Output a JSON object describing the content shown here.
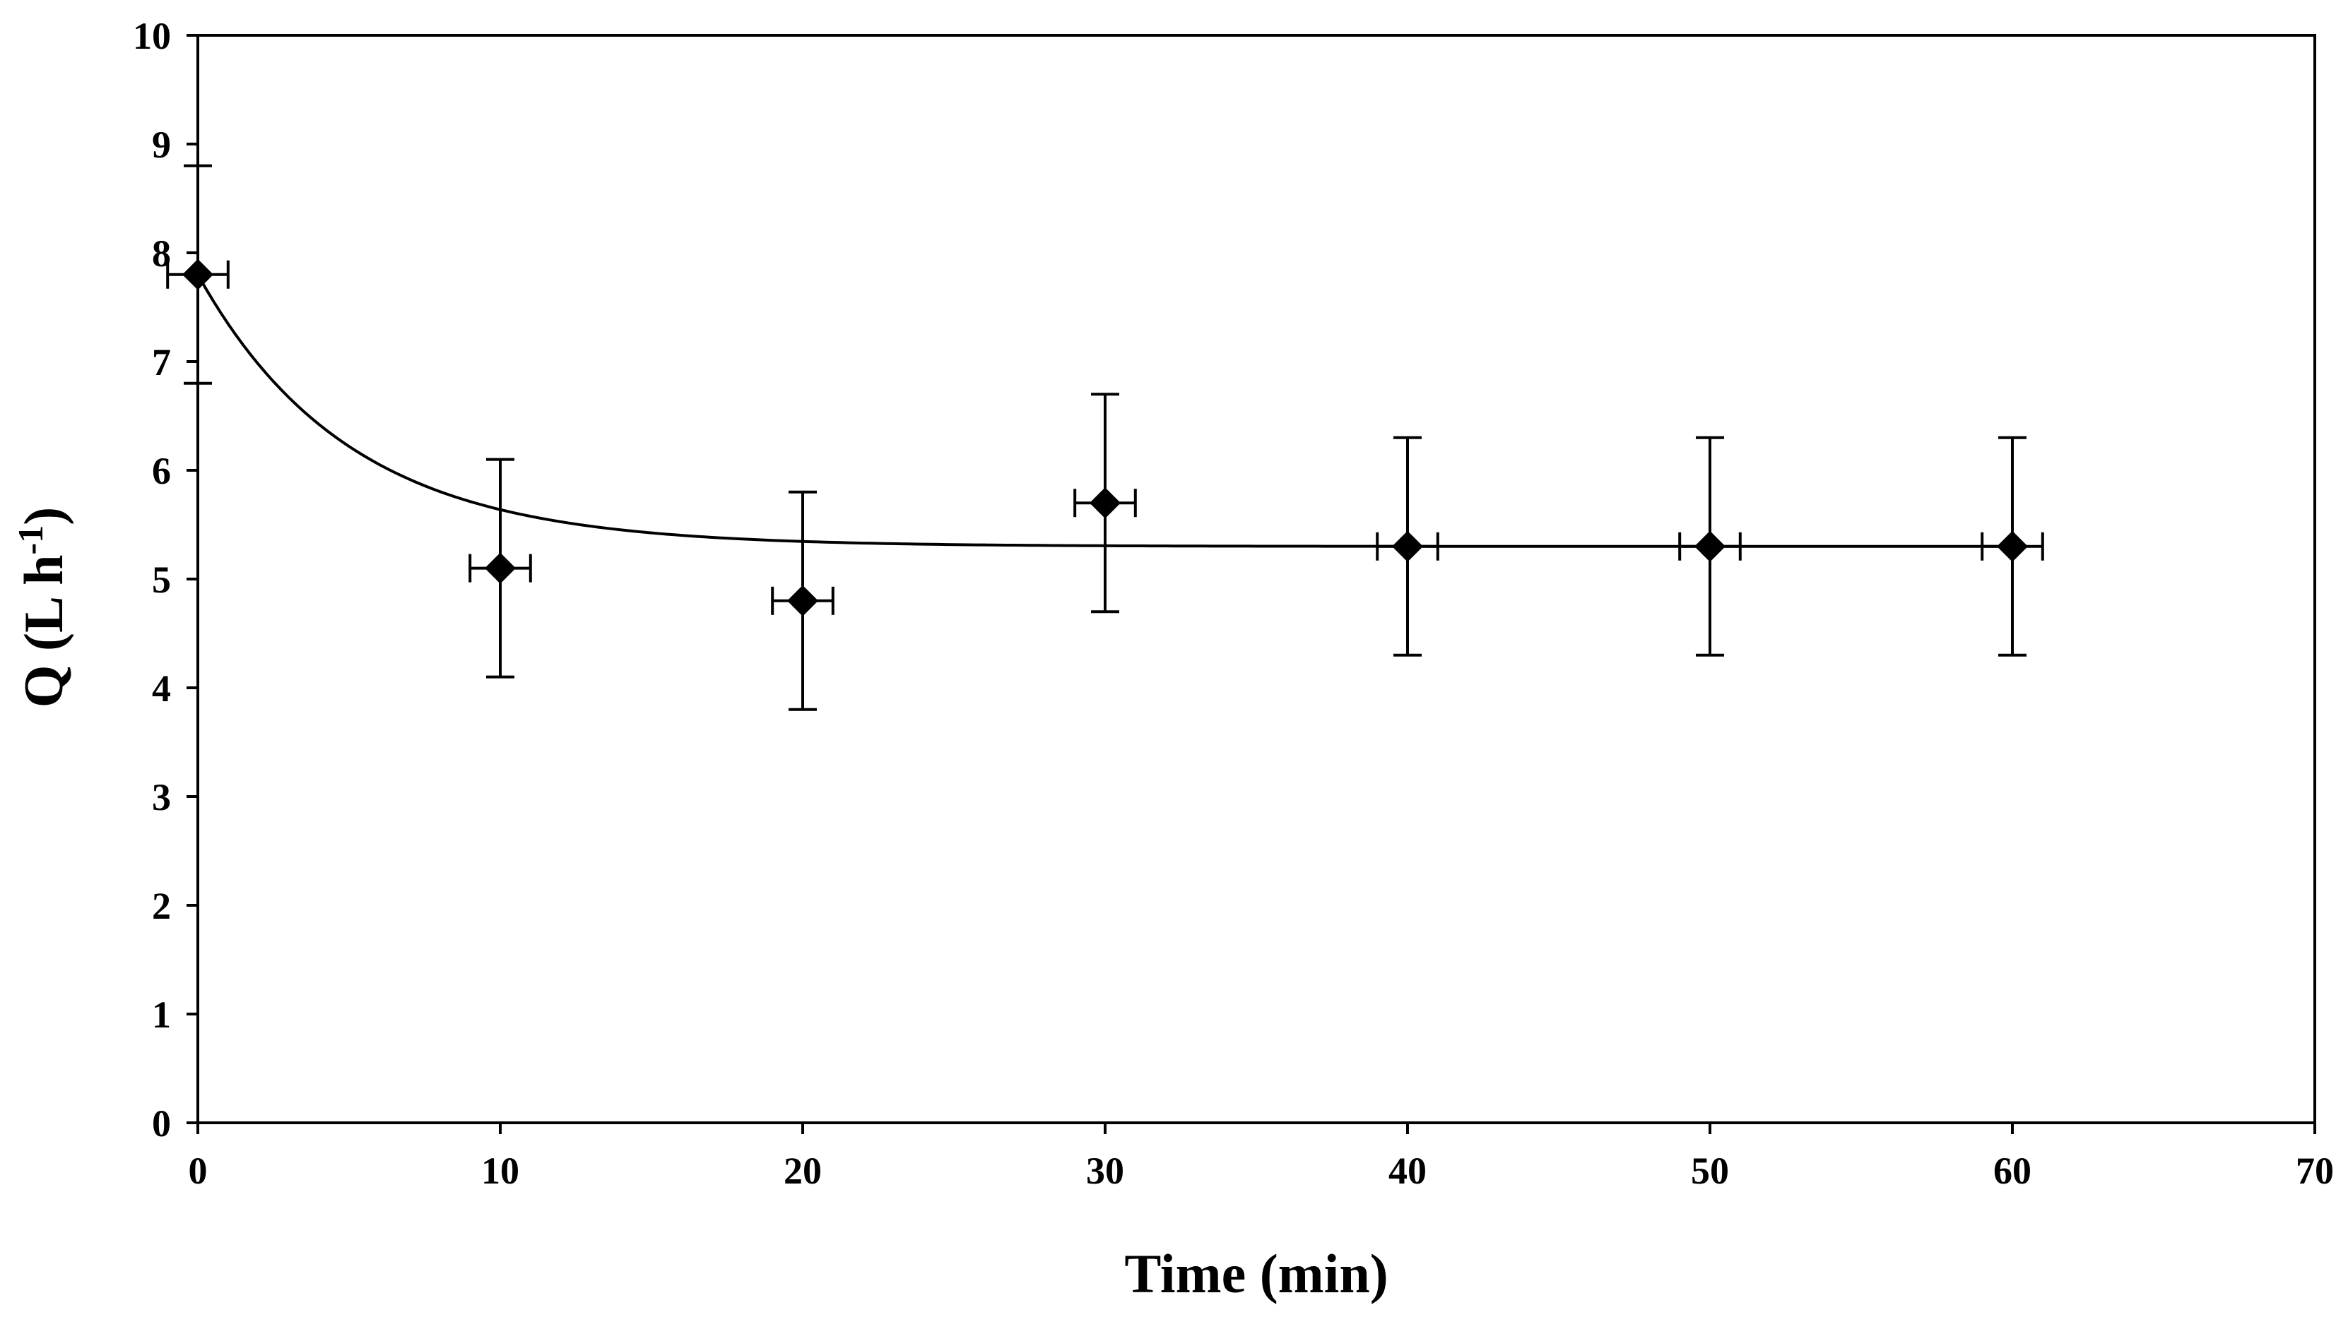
{
  "chart_data": {
    "type": "scatter",
    "title": "",
    "xlabel": "Time (min)",
    "ylabel": {
      "main": "Q (L h",
      "superscript": "-1",
      "close": ")"
    },
    "xlim": [
      0,
      70
    ],
    "ylim": [
      0,
      10
    ],
    "xticks": [
      0,
      10,
      20,
      30,
      40,
      50,
      60,
      70
    ],
    "yticks": [
      0,
      1,
      2,
      3,
      4,
      5,
      6,
      7,
      8,
      9,
      10
    ],
    "grid": false,
    "legend": "none",
    "marker": "diamond",
    "colors": {
      "marker": "#000000",
      "line": "#000000",
      "axis": "#000000",
      "background": "#ffffff"
    },
    "series": [
      {
        "name": "Q",
        "points": [
          {
            "x": 0,
            "y": 7.8,
            "yerr": 1.0,
            "xerr": 1.0
          },
          {
            "x": 10,
            "y": 5.1,
            "yerr": 1.0,
            "xerr": 1.0
          },
          {
            "x": 20,
            "y": 4.8,
            "yerr": 1.0,
            "xerr": 1.0
          },
          {
            "x": 30,
            "y": 5.7,
            "yerr": 1.0,
            "xerr": 1.0
          },
          {
            "x": 40,
            "y": 5.3,
            "yerr": 1.0,
            "xerr": 1.0
          },
          {
            "x": 50,
            "y": 5.3,
            "yerr": 1.0,
            "xerr": 1.0
          },
          {
            "x": 60,
            "y": 5.3,
            "yerr": 1.0,
            "xerr": 1.0
          }
        ]
      }
    ],
    "fit_curve": {
      "type": "exponential-decay",
      "description": "y = y_inf + (y0 - y_inf) * exp(-x / tau)",
      "y0": 7.8,
      "y_inf": 5.3,
      "tau": 5.0,
      "x_range": [
        0,
        60
      ]
    }
  }
}
